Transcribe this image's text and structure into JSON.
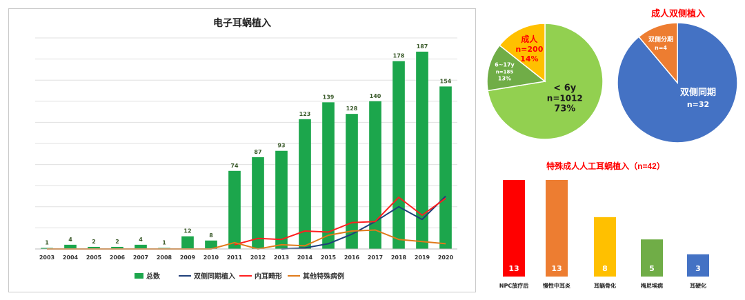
{
  "chart_data": [
    {
      "type": "bar",
      "title": "电子耳蜗植入",
      "categories": [
        "2003",
        "2004",
        "2005",
        "2006",
        "2007",
        "2008",
        "2009",
        "2010",
        "2011",
        "2012",
        "2013",
        "2014",
        "2015",
        "2016",
        "2017",
        "2018",
        "2019",
        "2020"
      ],
      "series": [
        {
          "name": "总数",
          "kind": "bar",
          "values": [
            1,
            4,
            2,
            2,
            4,
            1,
            12,
            8,
            74,
            87,
            93,
            123,
            139,
            128,
            140,
            178,
            187,
            154
          ]
        },
        {
          "name": "双侧同期植入",
          "kind": "line",
          "values": [
            null,
            null,
            null,
            null,
            null,
            null,
            null,
            null,
            null,
            null,
            0,
            1,
            5,
            14,
            26,
            40,
            28,
            50
          ]
        },
        {
          "name": "内耳畸形",
          "kind": "line",
          "values": [
            null,
            null,
            null,
            null,
            null,
            null,
            null,
            null,
            4,
            10,
            9,
            17,
            16,
            25,
            26,
            49,
            32,
            48
          ]
        },
        {
          "name": "其他特殊病例",
          "kind": "line",
          "values": [
            0,
            0,
            0,
            0,
            0,
            0,
            0,
            0,
            6,
            0,
            4,
            3,
            13,
            17,
            18,
            9,
            7,
            5
          ]
        }
      ],
      "data_labels": [
        "1",
        "4",
        "2",
        "2",
        "4",
        "1",
        "12",
        "8",
        "74",
        "87",
        "93",
        "123",
        "139",
        "128",
        "140",
        "178",
        "187",
        "154"
      ],
      "ylim": [
        0,
        200
      ],
      "grid": true,
      "legend": "bottom",
      "colors": {
        "bar": "#1ca64c",
        "line_bilateral": "#1f3f7a",
        "line_malformation": "#ff1f1f",
        "line_other": "#e07a1a",
        "label": "#3a5a2a"
      }
    },
    {
      "type": "pie",
      "slices": [
        {
          "label": "< 6y",
          "n": "n=1012",
          "pct": "73%",
          "value": 1012,
          "color": "#92d050"
        },
        {
          "label": "6~17y",
          "n": "n=185",
          "pct": "13%",
          "value": 185,
          "color": "#70ad47"
        },
        {
          "label": "成人",
          "n": "n=200",
          "pct": "14%",
          "value": 200,
          "color": "#ffc000"
        }
      ]
    },
    {
      "type": "pie",
      "title": "成人双侧植入",
      "slices": [
        {
          "label": "双侧同期",
          "n": "n=32",
          "value": 32,
          "color": "#4472c4"
        },
        {
          "label": "双侧分期",
          "n": "n=4",
          "value": 4,
          "color": "#ed7d31"
        }
      ]
    },
    {
      "type": "bar",
      "title": "特殊成人人工耳蜗植入（n=42）",
      "categories": [
        "NPC放疗后",
        "慢性中耳炎",
        "耳蜗骨化",
        "梅尼埃病",
        "耳硬化"
      ],
      "values": [
        13,
        13,
        8,
        5,
        3
      ],
      "colors": [
        "#ff0000",
        "#ed7d31",
        "#ffc000",
        "#70ad47",
        "#4472c4"
      ]
    }
  ]
}
